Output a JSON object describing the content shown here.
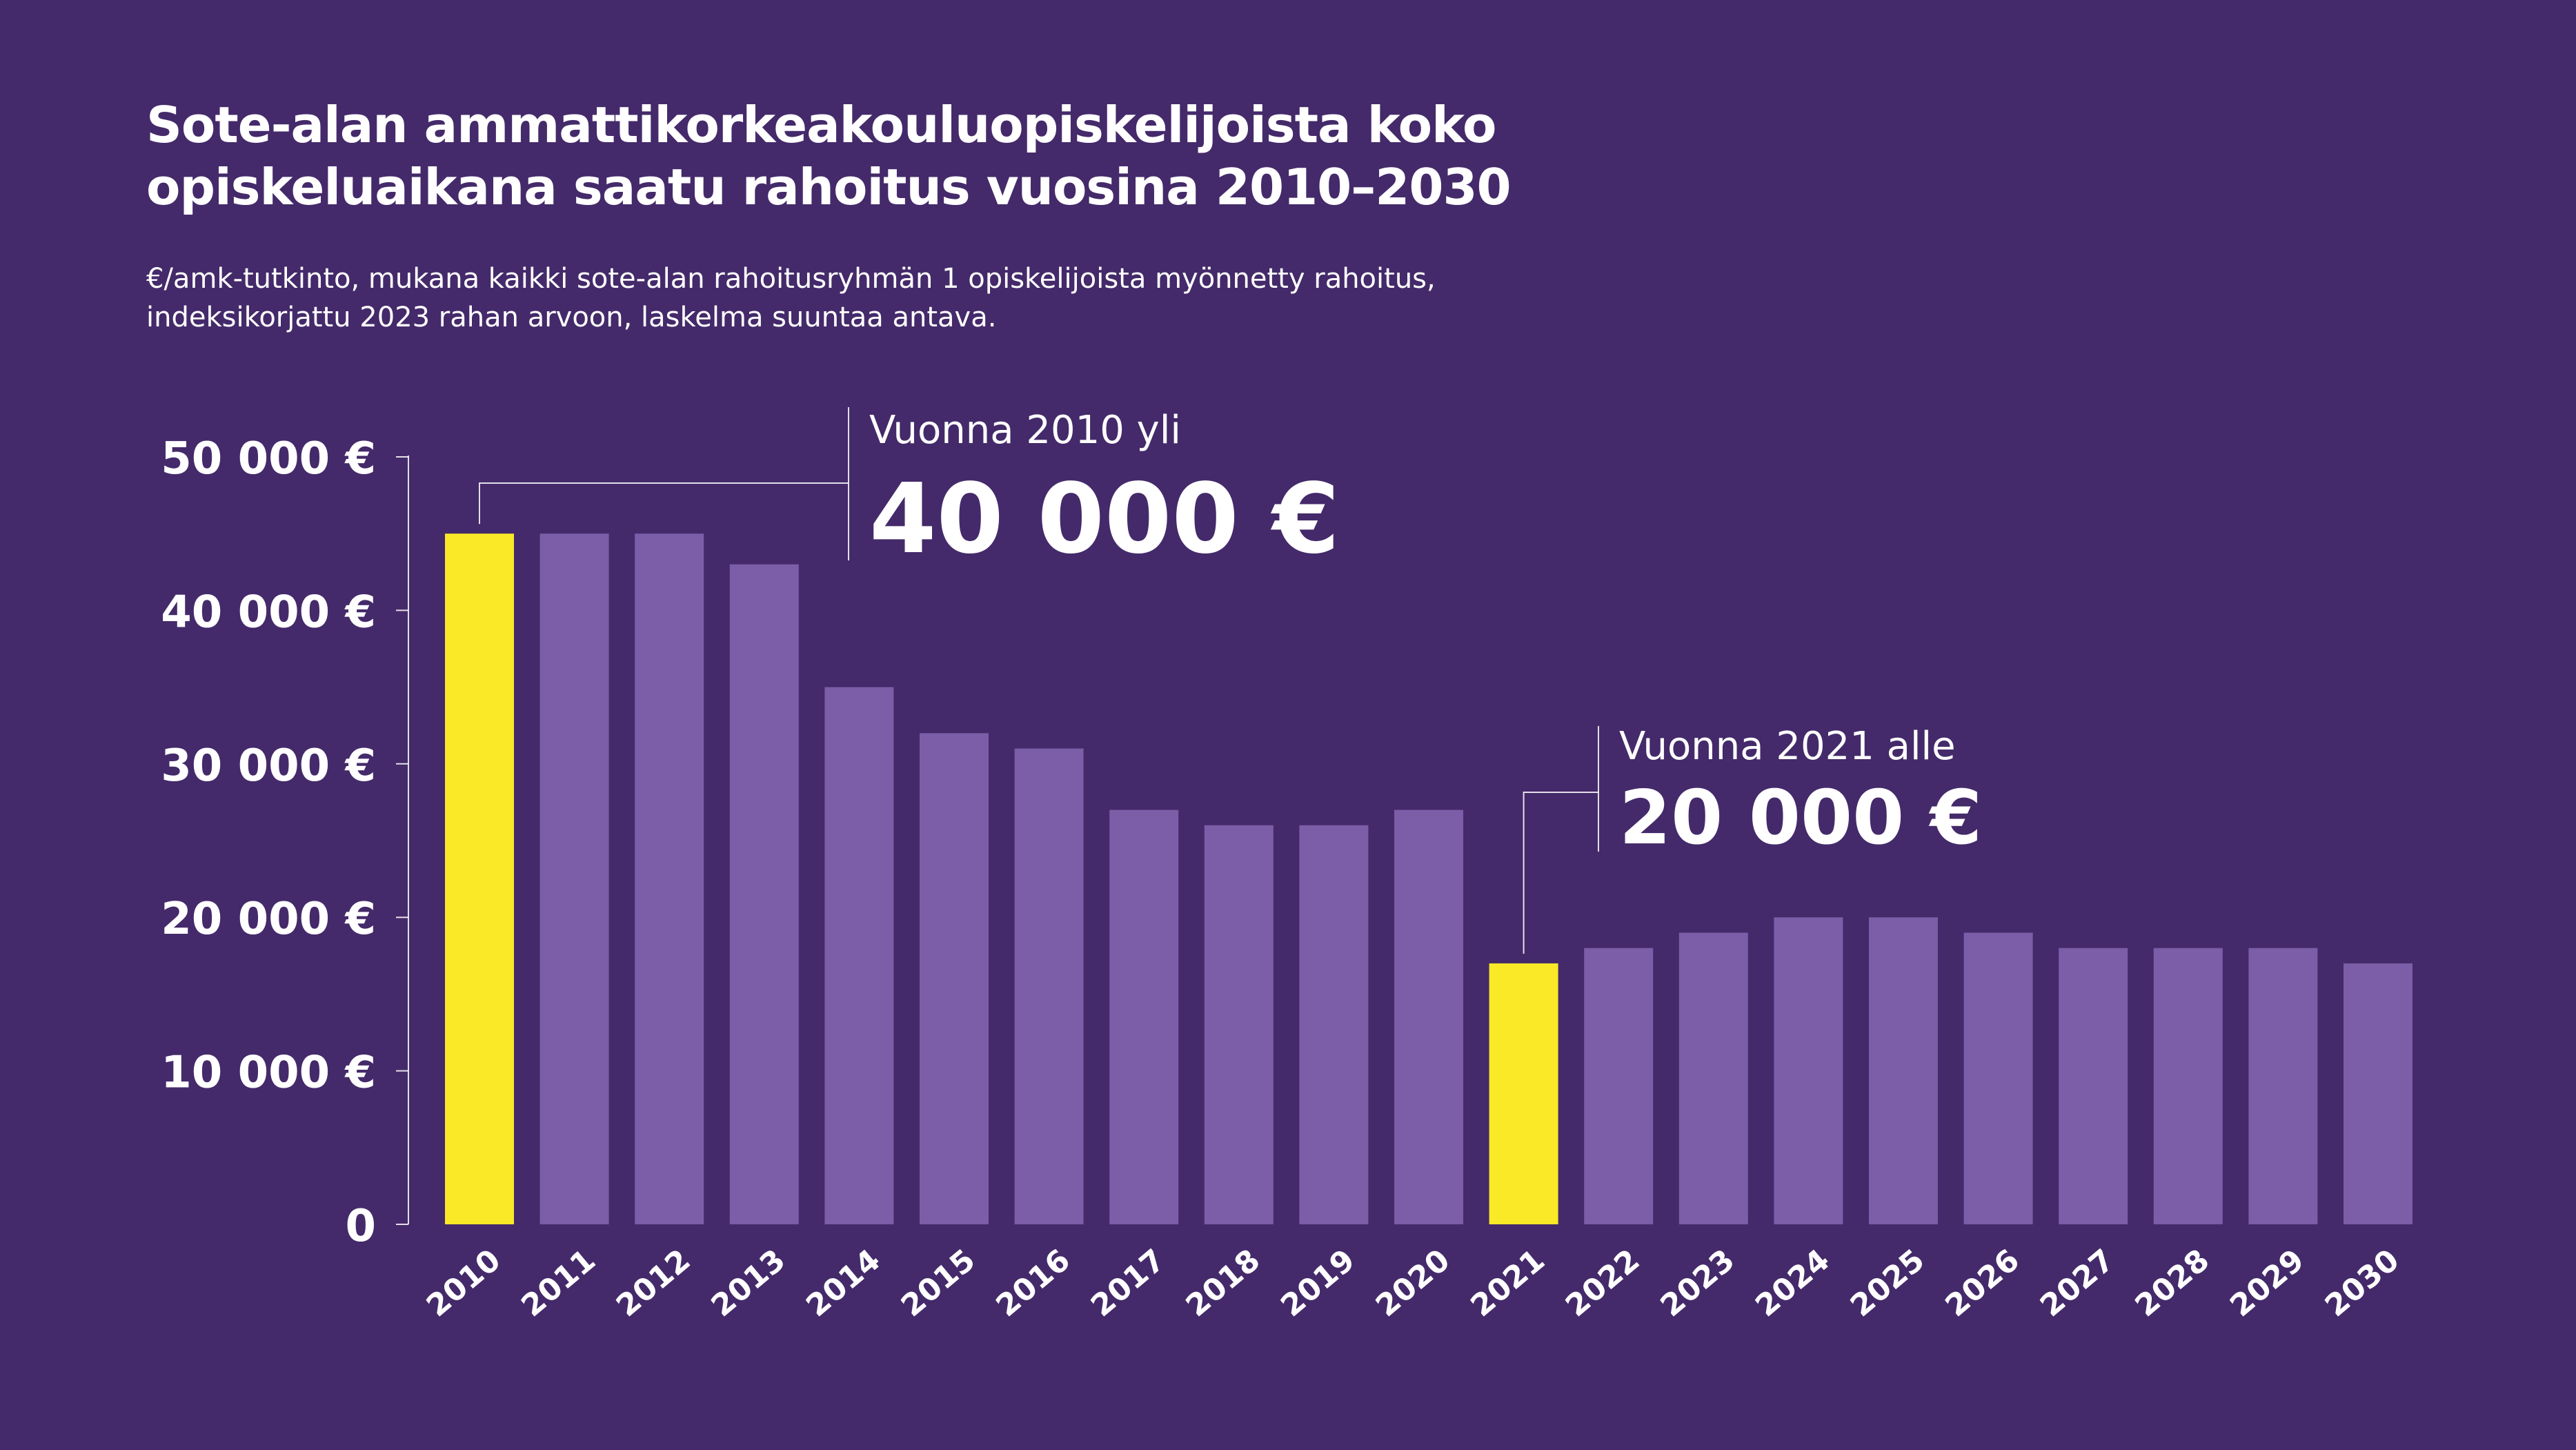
{
  "title_lines": [
    "Sote-alan ammattikorkeakouluopiskelijoista koko",
    "opiskeluaikana saatu rahoitus vuosina 2010–2030"
  ],
  "subtitle_lines": [
    "€/amk-tutkinto, mukana kaikki sote-alan rahoitusryhmän 1 opiskelijoista myönnetty rahoitus,",
    "indeksikorjattu 2023 rahan arvoon, laskelma suuntaa antava."
  ],
  "colors": {
    "background": "#442a6a",
    "bar": "#7b5ea7",
    "highlight": "#f9e927",
    "text": "#ffffff"
  },
  "chart_data": {
    "type": "bar",
    "categories": [
      "2010",
      "2011",
      "2012",
      "2013",
      "2014",
      "2015",
      "2016",
      "2017",
      "2018",
      "2019",
      "2020",
      "2021",
      "2022",
      "2023",
      "2024",
      "2025",
      "2026",
      "2027",
      "2028",
      "2029",
      "2030"
    ],
    "values": [
      45000,
      45000,
      45000,
      43000,
      35000,
      32000,
      31000,
      27000,
      26000,
      26000,
      27000,
      17000,
      18000,
      19000,
      20000,
      20000,
      19000,
      18000,
      18000,
      18000,
      17000
    ],
    "highlighted": [
      "2010",
      "2021"
    ],
    "ylim": [
      0,
      50000
    ],
    "yticks": [
      {
        "value": 0,
        "label": "0"
      },
      {
        "value": 10000,
        "label": "10 000 €"
      },
      {
        "value": 20000,
        "label": "20 000 €"
      },
      {
        "value": 30000,
        "label": "30 000 €"
      },
      {
        "value": 40000,
        "label": "40 000 €"
      },
      {
        "value": 50000,
        "label": "50 000 €"
      }
    ],
    "grid": false,
    "annotations": [
      {
        "category": "2010",
        "label": "Vuonna 2010 yli",
        "value_label": "40 000 €"
      },
      {
        "category": "2021",
        "label": "Vuonna 2021 alle",
        "value_label": "20 000 €"
      }
    ]
  }
}
